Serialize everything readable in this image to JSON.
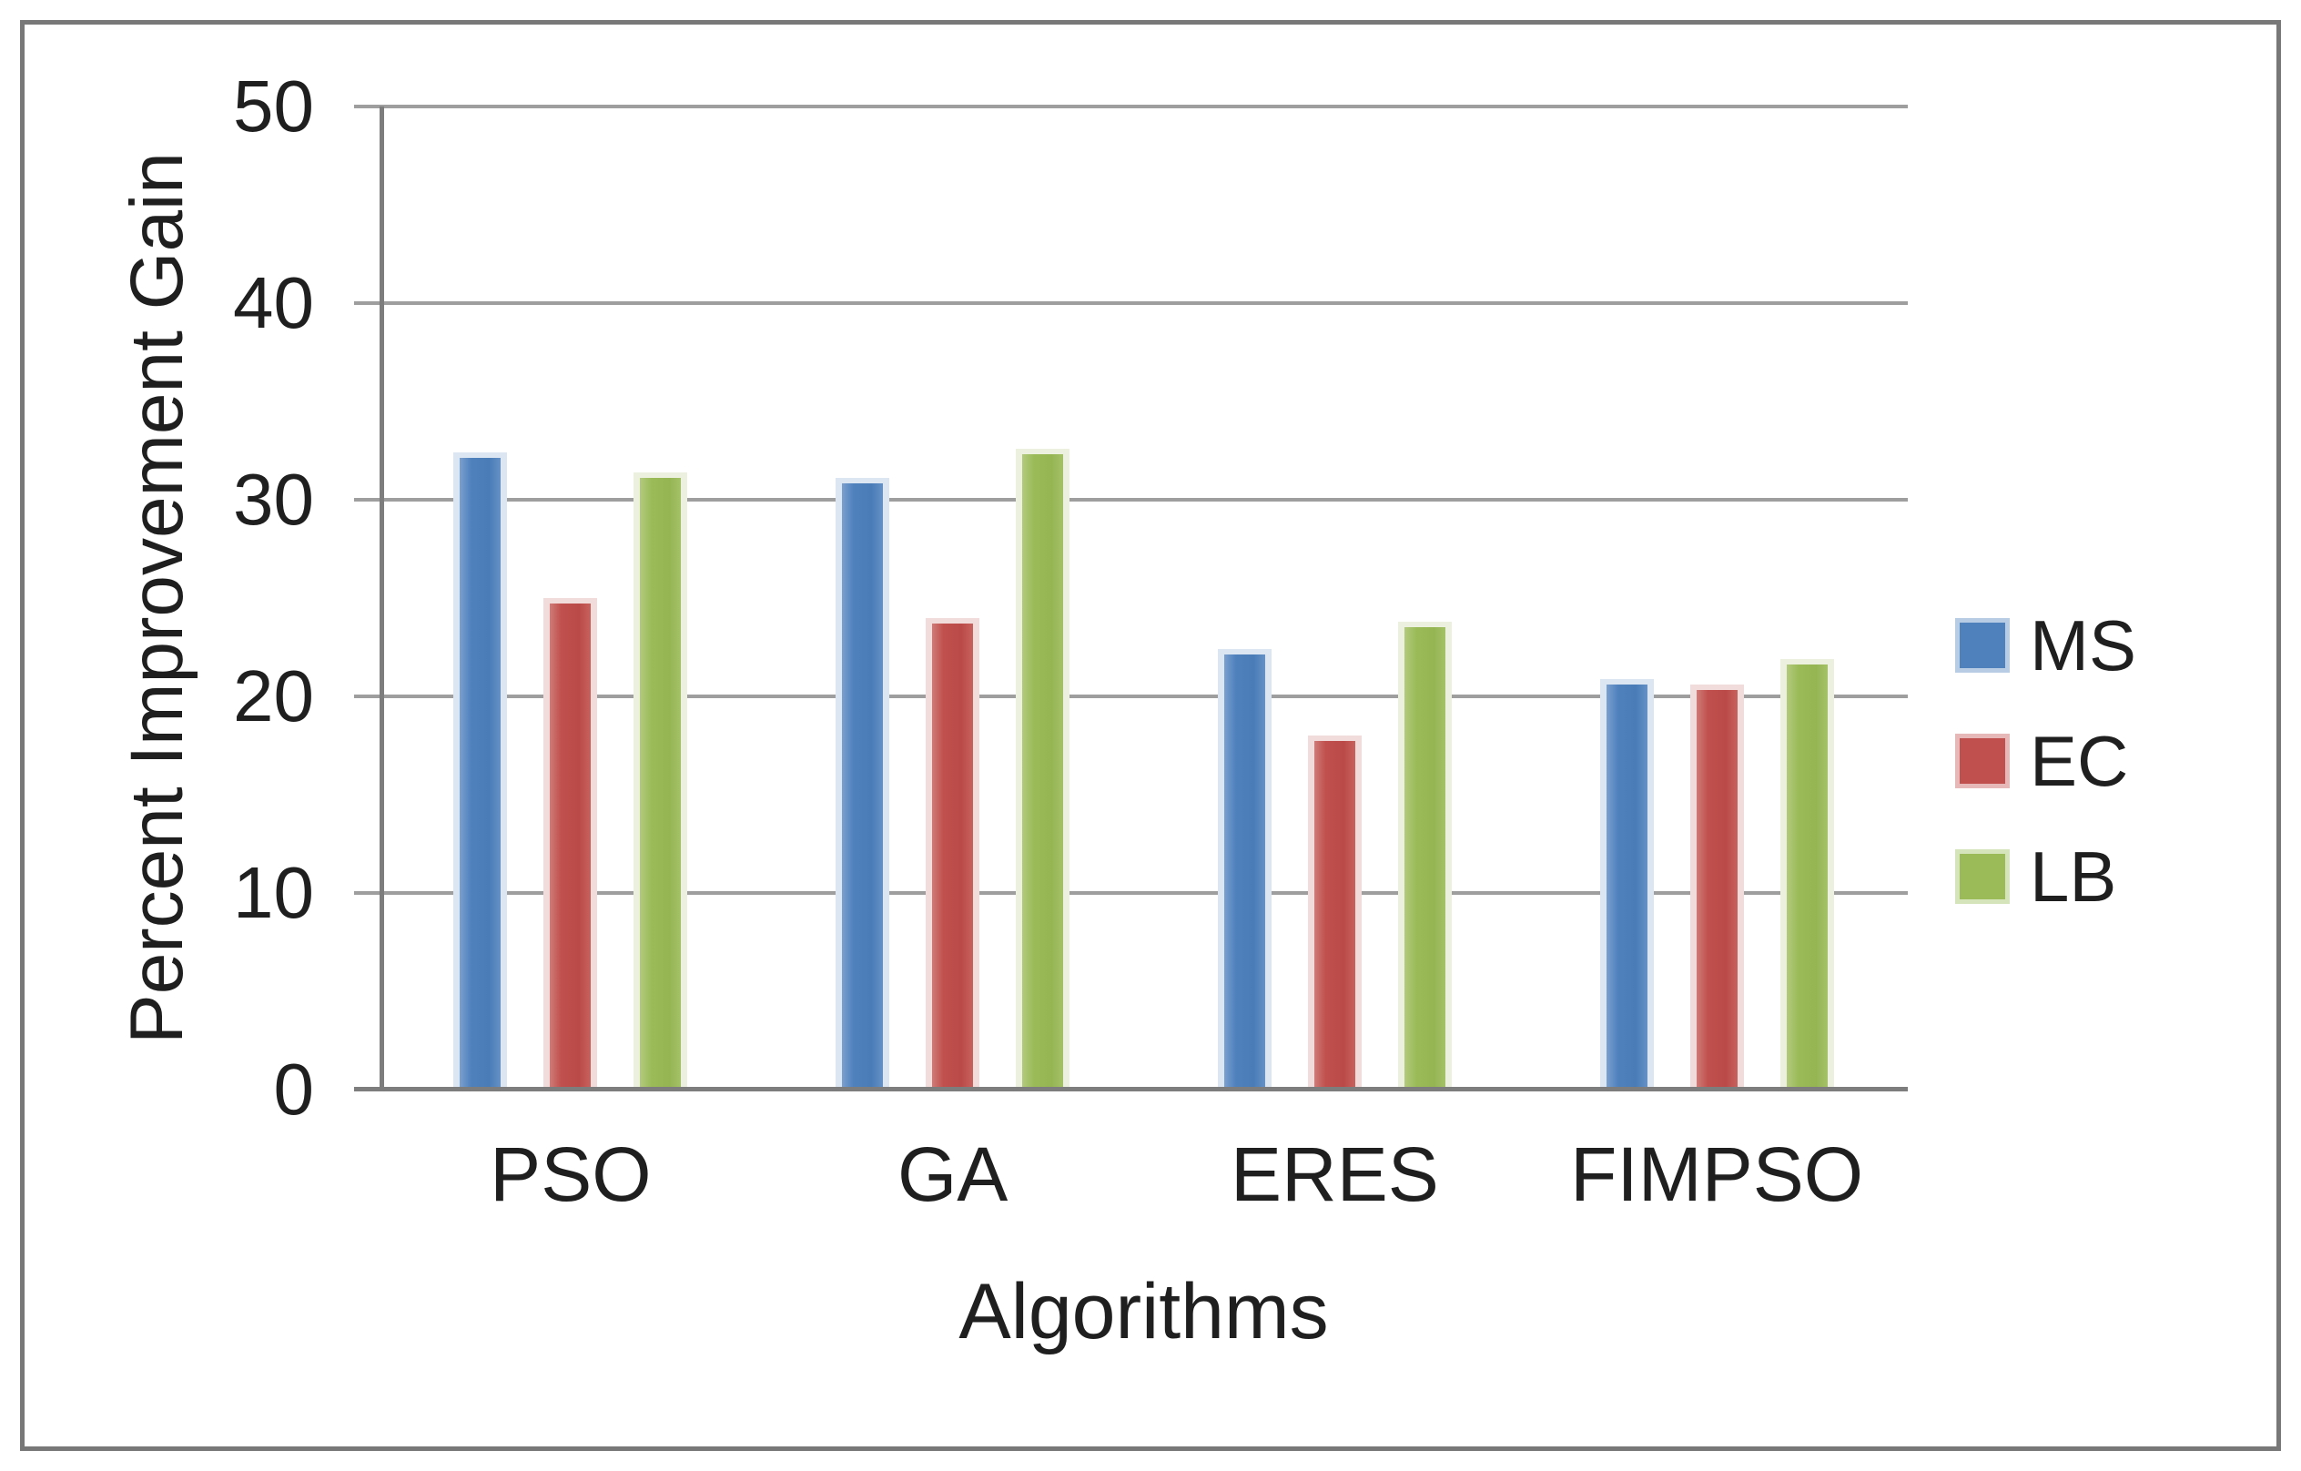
{
  "chart_data": {
    "type": "bar",
    "title": "",
    "xlabel": "Algorithms",
    "ylabel": "Percent Improvement Gain",
    "categories": [
      "PSO",
      "GA",
      "ERES",
      "FIMPSO"
    ],
    "series": [
      {
        "name": "MS",
        "color": "#4f81bd",
        "values": [
          32.4,
          31.1,
          22.4,
          20.9
        ]
      },
      {
        "name": "EC",
        "color": "#c0504d",
        "values": [
          25.0,
          24.0,
          18.0,
          20.6
        ]
      },
      {
        "name": "LB",
        "color": "#9bbb59",
        "values": [
          31.4,
          32.6,
          23.8,
          21.9
        ]
      }
    ],
    "ylim": [
      0,
      50
    ],
    "yticks": [
      0,
      10,
      20,
      30,
      40,
      50
    ],
    "grid": true,
    "legend_position": "right",
    "legend_entries": [
      "MS",
      "EC",
      "LB"
    ]
  },
  "colors": {
    "gridline": "#9e9e9e",
    "axis": "#7d7d7d",
    "frame_border": "#787878",
    "text": "#1f1f1f",
    "series_ms": "#4f81bd",
    "series_ec": "#c0504d",
    "series_lb": "#9bbb59"
  }
}
